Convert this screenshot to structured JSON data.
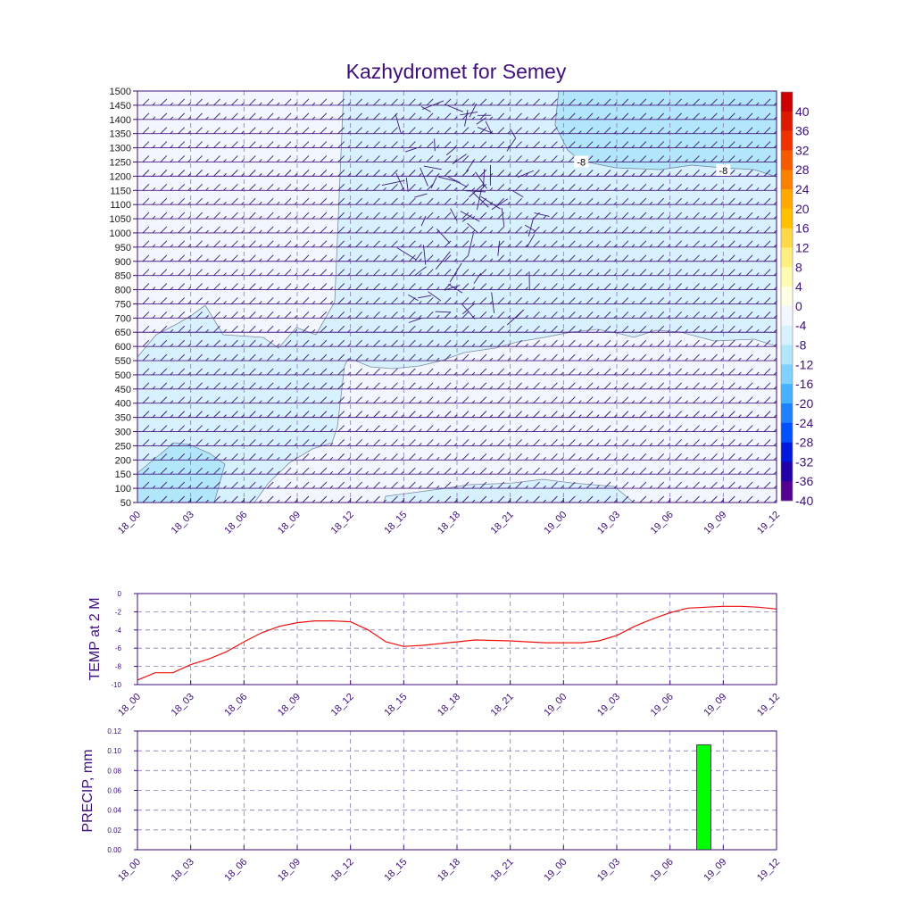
{
  "title": "Kazhydromet for Semey",
  "colors": {
    "frame": "#3d0f7a",
    "text": "#3d0f7a",
    "temp_line": "#ee1010",
    "precip_bar": "#00ff00",
    "precip_edge": "#222222",
    "contour_line": "#7a8aa0"
  },
  "chart_data": [
    {
      "type": "heatmap",
      "title": "Kazhydromet for Semey",
      "x_ticks": [
        "18_00",
        "18_03",
        "18_06",
        "18_09",
        "18_12",
        "18_15",
        "18_18",
        "18_21",
        "19_00",
        "19_03",
        "19_06",
        "19_09",
        "19_12"
      ],
      "y_ticks": [
        "50",
        "100",
        "150",
        "200",
        "250",
        "300",
        "350",
        "400",
        "450",
        "500",
        "550",
        "600",
        "650",
        "700",
        "750",
        "800",
        "850",
        "900",
        "950",
        "1000",
        "1050",
        "1100",
        "1150",
        "1200",
        "1250",
        "1300",
        "1350",
        "1400",
        "1450",
        "1500"
      ],
      "ylim": [
        50,
        1500
      ],
      "x_hours": [
        0,
        36
      ],
      "colorbar": {
        "labels": [
          "40",
          "36",
          "32",
          "28",
          "24",
          "20",
          "16",
          "12",
          "8",
          "4",
          "0",
          "-4",
          "-8",
          "-12",
          "-16",
          "-20",
          "-24",
          "-28",
          "-32",
          "-36",
          "-40"
        ],
        "colors": [
          "#cc0000",
          "#dd1a00",
          "#ee3300",
          "#f55a00",
          "#fa8000",
          "#ffa800",
          "#ffc000",
          "#ffd84a",
          "#ffee80",
          "#fffbb0",
          "#ffffe6",
          "#f2f7ff",
          "#d8f1ff",
          "#b2e7fb",
          "#80d1ff",
          "#44b2ff",
          "#1e82ff",
          "#0050ff",
          "#0018dd",
          "#2200a8",
          "#540090"
        ]
      },
      "contour_labels": [
        {
          "text": "-8",
          "hour": 25,
          "height": 1250
        },
        {
          "text": "-8",
          "hour": 33,
          "height": 1220
        }
      ],
      "grid": true
    },
    {
      "type": "line",
      "ylabel": "TEMP at 2 M",
      "ylim": [
        -10,
        0
      ],
      "y_ticks": [
        "0",
        "-2",
        "-4",
        "-6",
        "-8",
        "-10"
      ],
      "x_ticks": [
        "18_00",
        "18_03",
        "18_06",
        "18_09",
        "18_12",
        "18_15",
        "18_18",
        "18_21",
        "19_00",
        "19_03",
        "19_06",
        "19_09",
        "19_12"
      ],
      "x_hours": [
        0,
        1,
        2,
        3,
        4,
        5,
        6,
        7,
        8,
        9,
        10,
        11,
        12,
        13,
        14,
        15,
        16,
        17,
        18,
        19,
        20,
        21,
        22,
        23,
        24,
        25,
        26,
        27,
        28,
        29,
        30,
        31,
        32,
        33,
        34,
        35,
        36
      ],
      "values": [
        -9.5,
        -8.7,
        -8.7,
        -7.8,
        -7.2,
        -6.4,
        -5.3,
        -4.3,
        -3.6,
        -3.2,
        -3.0,
        -3.0,
        -3.1,
        -4.0,
        -5.3,
        -5.8,
        -5.7,
        -5.5,
        -5.3,
        -5.1,
        -5.15,
        -5.2,
        -5.3,
        -5.4,
        -5.4,
        -5.4,
        -5.2,
        -4.6,
        -3.6,
        -2.8,
        -2.1,
        -1.6,
        -1.5,
        -1.4,
        -1.4,
        -1.5,
        -1.7
      ],
      "grid": true
    },
    {
      "type": "bar",
      "ylabel": "PRECIP, mm",
      "ylim": [
        0,
        0.12
      ],
      "y_ticks": [
        "0.12",
        "0.10",
        "0.08",
        "0.06",
        "0.04",
        "0.02",
        "0.00"
      ],
      "x_ticks": [
        "18_00",
        "18_03",
        "18_06",
        "18_09",
        "18_12",
        "18_15",
        "18_18",
        "18_21",
        "19_00",
        "19_03",
        "19_06",
        "19_09",
        "19_12"
      ],
      "bars": [
        {
          "start_hour": 31.5,
          "end_hour": 32.3,
          "value": 0.106
        }
      ],
      "grid": true
    }
  ]
}
